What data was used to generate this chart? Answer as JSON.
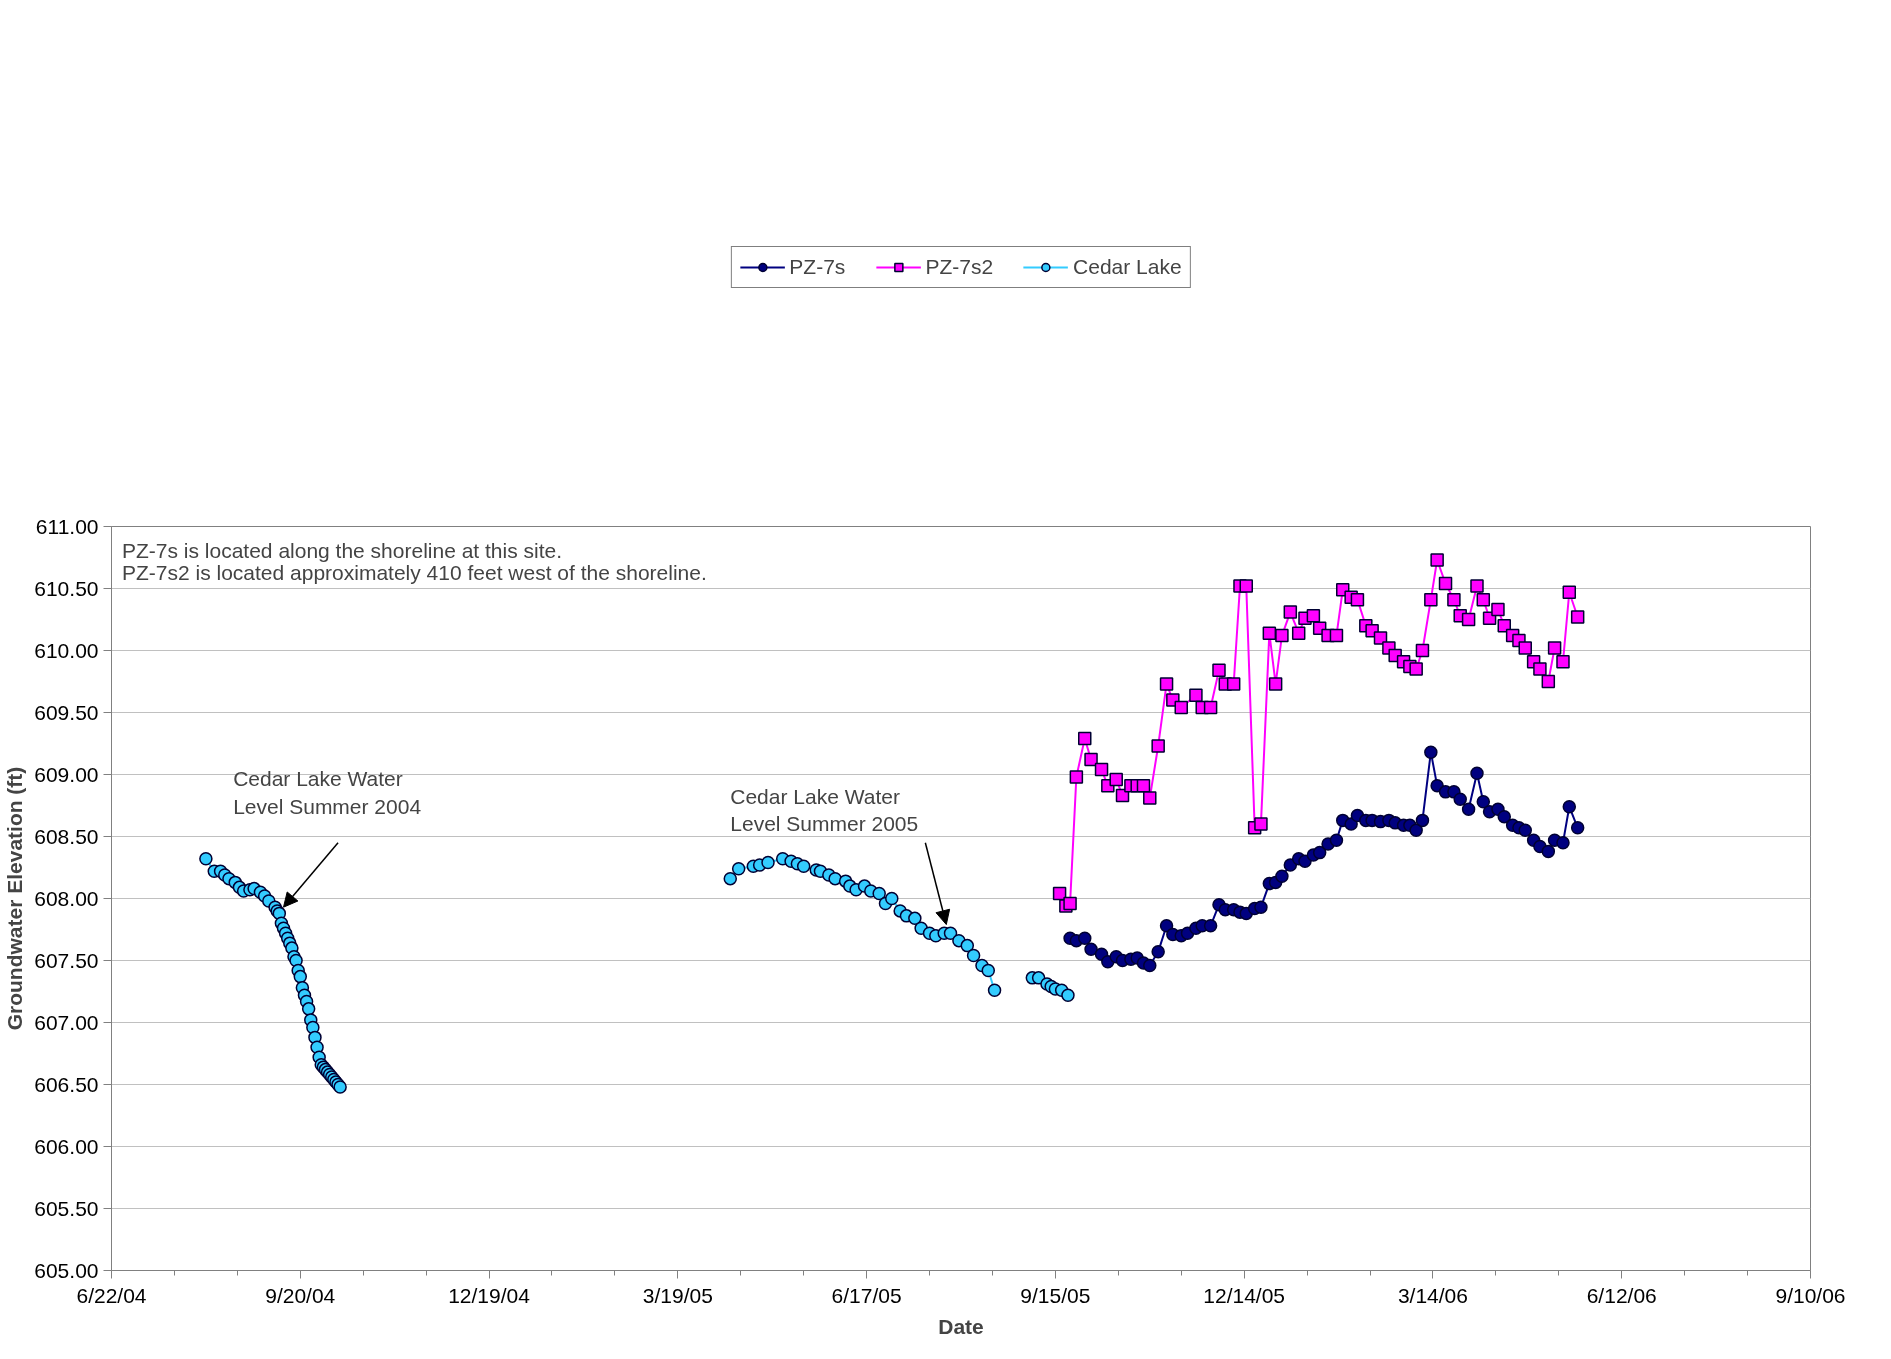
{
  "chart_data": {
    "type": "line",
    "xlabel": "Date",
    "ylabel": "Groundwater Elevation (ft)",
    "xlim": [
      "2004-06-22",
      "2006-09-10"
    ],
    "xticks": [
      {
        "value": "2004-06-22",
        "label": "6/22/04"
      },
      {
        "value": "2004-07-22",
        "label": null
      },
      {
        "value": "2004-08-21",
        "label": null
      },
      {
        "value": "2004-09-20",
        "label": "9/20/04"
      },
      {
        "value": "2004-10-20",
        "label": null
      },
      {
        "value": "2004-11-19",
        "label": null
      },
      {
        "value": "2004-12-19",
        "label": "12/19/04"
      },
      {
        "value": "2005-01-18",
        "label": null
      },
      {
        "value": "2005-02-17",
        "label": null
      },
      {
        "value": "2005-03-19",
        "label": "3/19/05"
      },
      {
        "value": "2005-04-18",
        "label": null
      },
      {
        "value": "2005-05-18",
        "label": null
      },
      {
        "value": "2005-06-17",
        "label": "6/17/05"
      },
      {
        "value": "2005-07-17",
        "label": null
      },
      {
        "value": "2005-08-16",
        "label": null
      },
      {
        "value": "2005-09-15",
        "label": "9/15/05"
      },
      {
        "value": "2005-10-15",
        "label": null
      },
      {
        "value": "2005-11-14",
        "label": null
      },
      {
        "value": "2005-12-14",
        "label": "12/14/05"
      },
      {
        "value": "2006-01-13",
        "label": null
      },
      {
        "value": "2006-02-12",
        "label": null
      },
      {
        "value": "2006-03-14",
        "label": "3/14/06"
      },
      {
        "value": "2006-04-13",
        "label": null
      },
      {
        "value": "2006-05-13",
        "label": null
      },
      {
        "value": "2006-06-12",
        "label": "6/12/06"
      },
      {
        "value": "2006-07-12",
        "label": null
      },
      {
        "value": "2006-08-11",
        "label": null
      },
      {
        "value": "2006-09-10",
        "label": "9/10/06"
      }
    ],
    "ylim": [
      605,
      611
    ],
    "yticks": [
      {
        "value": 605,
        "label": "605.00"
      },
      {
        "value": 605.5,
        "label": "605.50"
      },
      {
        "value": 606,
        "label": "606.00"
      },
      {
        "value": 606.5,
        "label": "606.50"
      },
      {
        "value": 607,
        "label": "607.00"
      },
      {
        "value": 607.5,
        "label": "607.50"
      },
      {
        "value": 608,
        "label": "608.00"
      },
      {
        "value": 608.5,
        "label": "608.50"
      },
      {
        "value": 609,
        "label": "609.00"
      },
      {
        "value": 609.5,
        "label": "609.50"
      },
      {
        "value": 610,
        "label": "610.00"
      },
      {
        "value": 610.5,
        "label": "610.50"
      },
      {
        "value": 611,
        "label": "611.00"
      }
    ],
    "grid": "y",
    "legend": "top",
    "series": [
      {
        "name": "PZ-7s",
        "color": "#000080",
        "marker": "circle",
        "x": [
          "2005-09-22",
          "2005-09-25",
          "2005-09-29",
          "2005-10-02",
          "2005-10-07",
          "2005-10-10",
          "2005-10-14",
          "2005-10-17",
          "2005-10-21",
          "2005-10-24",
          "2005-10-27",
          "2005-10-30",
          "2005-11-03",
          "2005-11-07",
          "2005-11-10",
          "2005-11-14",
          "2005-11-17",
          "2005-11-21",
          "2005-11-24",
          "2005-11-28",
          "2005-12-02",
          "2005-12-05",
          "2005-12-09",
          "2005-12-12",
          "2005-12-15",
          "2005-12-19",
          "2005-12-22",
          "2005-12-26",
          "2005-12-29",
          "2006-01-01",
          "2006-01-05",
          "2006-01-09",
          "2006-01-12",
          "2006-01-16",
          "2006-01-19",
          "2006-01-23",
          "2006-01-27",
          "2006-01-30",
          "2006-02-03",
          "2006-02-06",
          "2006-02-10",
          "2006-02-13",
          "2006-02-17",
          "2006-02-21",
          "2006-02-24",
          "2006-02-28",
          "2006-03-03",
          "2006-03-06",
          "2006-03-09",
          "2006-03-13",
          "2006-03-16",
          "2006-03-20",
          "2006-03-24",
          "2006-03-27",
          "2006-03-31",
          "2006-04-04",
          "2006-04-07",
          "2006-04-10",
          "2006-04-14",
          "2006-04-17",
          "2006-04-21",
          "2006-04-24",
          "2006-04-27",
          "2006-05-01",
          "2006-05-04",
          "2006-05-08",
          "2006-05-11",
          "2006-05-15",
          "2006-05-18",
          "2006-05-22"
        ],
        "values": [
          607.68,
          607.66,
          607.68,
          607.59,
          607.55,
          607.49,
          607.53,
          607.5,
          607.51,
          607.52,
          607.48,
          607.46,
          607.57,
          607.78,
          607.71,
          607.7,
          607.72,
          607.76,
          607.78,
          607.78,
          607.95,
          607.91,
          607.91,
          607.89,
          607.88,
          607.92,
          607.93,
          608.12,
          608.13,
          608.18,
          608.27,
          608.32,
          608.3,
          608.35,
          608.37,
          608.44,
          608.47,
          608.63,
          608.6,
          608.67,
          608.63,
          608.63,
          608.62,
          608.63,
          608.61,
          608.59,
          608.59,
          608.55,
          608.63,
          609.18,
          608.91,
          608.86,
          608.86,
          608.8,
          608.72,
          609.01,
          608.78,
          608.7,
          608.72,
          608.66,
          608.59,
          608.57,
          608.55,
          608.47,
          608.42,
          608.38,
          608.47,
          608.45,
          608.74,
          608.57
        ]
      },
      {
        "name": "PZ-7s2",
        "color": "#ff00ff",
        "marker": "square",
        "x": [
          "2005-09-17",
          "2005-09-20",
          "2005-09-22",
          "2005-09-25",
          "2005-09-29",
          "2005-10-02",
          "2005-10-07",
          "2005-10-10",
          "2005-10-14",
          "2005-10-17",
          "2005-10-21",
          "2005-10-24",
          "2005-10-27",
          "2005-10-30",
          "2005-11-03",
          "2005-11-07",
          "2005-11-10",
          "2005-11-14",
          "2005-11-21",
          "2005-11-24",
          "2005-11-28",
          "2005-12-02",
          "2005-12-05",
          "2005-12-09",
          "2005-12-12",
          "2005-12-15",
          "2005-12-19",
          "2005-12-22",
          "2005-12-26",
          "2005-12-29",
          "2006-01-01",
          "2006-01-05",
          "2006-01-09",
          "2006-01-12",
          "2006-01-16",
          "2006-01-19",
          "2006-01-23",
          "2006-01-27",
          "2006-01-30",
          "2006-02-03",
          "2006-02-06",
          "2006-02-10",
          "2006-02-13",
          "2006-02-17",
          "2006-02-21",
          "2006-02-24",
          "2006-02-28",
          "2006-03-03",
          "2006-03-06",
          "2006-03-09",
          "2006-03-13",
          "2006-03-16",
          "2006-03-20",
          "2006-03-24",
          "2006-03-27",
          "2006-03-31",
          "2006-04-04",
          "2006-04-07",
          "2006-04-10",
          "2006-04-14",
          "2006-04-17",
          "2006-04-21",
          "2006-04-24",
          "2006-04-27",
          "2006-05-01",
          "2006-05-04",
          "2006-05-08",
          "2006-05-11",
          "2006-05-15",
          "2006-05-18",
          "2006-05-22"
        ],
        "values": [
          608.04,
          607.94,
          607.96,
          608.98,
          609.29,
          609.12,
          609.04,
          608.91,
          608.96,
          608.83,
          608.91,
          608.91,
          608.91,
          608.81,
          609.23,
          609.73,
          609.6,
          609.54,
          609.64,
          609.54,
          609.54,
          609.84,
          609.73,
          609.73,
          610.52,
          610.52,
          608.57,
          608.6,
          610.14,
          609.73,
          610.12,
          610.31,
          610.14,
          610.26,
          610.28,
          610.18,
          610.12,
          610.12,
          610.49,
          610.43,
          610.41,
          610.2,
          610.16,
          610.1,
          610.02,
          609.96,
          609.91,
          609.87,
          609.85,
          610.0,
          610.41,
          610.73,
          610.54,
          610.41,
          610.28,
          610.25,
          610.52,
          610.41,
          610.26,
          610.33,
          610.2,
          610.12,
          610.08,
          610.02,
          609.91,
          609.85,
          609.75,
          610.02,
          609.91,
          610.47,
          610.27
        ]
      },
      {
        "name": "Cedar Lake",
        "color": "#33ccff",
        "marker": "circle",
        "x": [
          "2004-08-06",
          "2004-08-10",
          "2004-08-13",
          "2004-08-15",
          "2004-08-17",
          "2004-08-20",
          "2004-08-22",
          "2004-08-24",
          "2004-08-27",
          "2004-08-29",
          "2004-09-01",
          "2004-09-03",
          "2004-09-05",
          "2004-09-08",
          "2004-09-09",
          "2004-09-10",
          "2004-09-11",
          "2004-09-12",
          "2004-09-13",
          "2004-09-14",
          "2004-09-15",
          "2004-09-16",
          "2004-09-17",
          "2004-09-18",
          "2004-09-19",
          "2004-09-20",
          "2004-09-21",
          "2004-09-22",
          "2004-09-23",
          "2004-09-24",
          "2004-09-25",
          "2004-09-26",
          "2004-09-27",
          "2004-09-28",
          "2004-09-29",
          "2004-09-30",
          "2004-10-01",
          "2004-10-02",
          "2004-10-03",
          "2004-10-04",
          "2004-10-05",
          "2004-10-06",
          "2004-10-07",
          "2004-10-08",
          "2004-10-09",
          "2005-01-01",
          "2005-04-13",
          "2005-04-17",
          "2005-04-24",
          "2005-04-27",
          "2005-05-01",
          "2005-05-08",
          "2005-05-12",
          "2005-05-15",
          "2005-05-18",
          "2005-05-24",
          "2005-05-26",
          "2005-05-30",
          "2005-06-02",
          "2005-06-07",
          "2005-06-09",
          "2005-06-12",
          "2005-06-16",
          "2005-06-19",
          "2005-06-23",
          "2005-06-26",
          "2005-06-29",
          "2005-07-03",
          "2005-07-06",
          "2005-07-10",
          "2005-07-13",
          "2005-07-17",
          "2005-07-20",
          "2005-07-24",
          "2005-07-27",
          "2005-07-31",
          "2005-08-04",
          "2005-08-07",
          "2005-08-11",
          "2005-08-14",
          "2005-08-17",
          "2005-08-25",
          "2005-09-04",
          "2005-09-07",
          "2005-09-11",
          "2005-09-13",
          "2005-09-15",
          "2005-09-18",
          "2005-09-21"
        ],
        "values": [
          608.32,
          608.22,
          608.22,
          608.19,
          608.16,
          608.13,
          608.09,
          608.06,
          608.07,
          608.08,
          608.05,
          608.02,
          607.98,
          607.93,
          607.9,
          607.88,
          607.8,
          607.76,
          607.72,
          607.68,
          607.64,
          607.6,
          607.53,
          607.5,
          607.42,
          607.37,
          607.28,
          607.22,
          607.17,
          607.11,
          607.02,
          606.96,
          606.88,
          606.8,
          606.72,
          606.66,
          606.64,
          606.62,
          606.6,
          606.58,
          606.56,
          606.54,
          606.52,
          606.5,
          606.48,
          null,
          608.16,
          608.24,
          608.26,
          608.27,
          608.29,
          608.32,
          608.3,
          608.28,
          608.26,
          608.23,
          608.22,
          608.19,
          608.16,
          608.14,
          608.1,
          608.07,
          608.1,
          608.06,
          608.04,
          607.96,
          608.0,
          607.9,
          607.86,
          607.84,
          607.76,
          607.72,
          607.7,
          607.72,
          607.72,
          607.66,
          607.62,
          607.54,
          607.46,
          607.42,
          607.26,
          null,
          607.36,
          607.36,
          607.31,
          607.29,
          607.27,
          607.26,
          607.22
        ]
      }
    ],
    "annotations": [
      "PZ-7s is located along the shoreline at this site.",
      "PZ-7s2 is located approximately 410 feet west of the shoreline.",
      {
        "text": "Cedar Lake Water\nLevel Summer 2004",
        "x": "2004-09-12",
        "y": 607.93
      },
      {
        "text": "Cedar Lake Water\nLevel Summer 2005",
        "x": "2005-07-25",
        "y": 607.79
      }
    ]
  }
}
